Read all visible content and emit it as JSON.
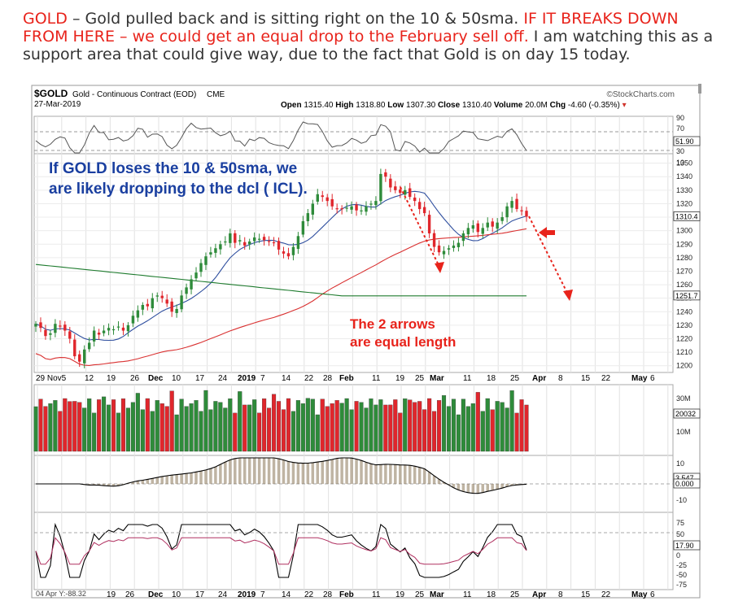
{
  "commentary": {
    "ticker": "GOLD",
    "sep": " – ",
    "part1": "Gold pulled back and is sitting right on the 10 & 50sma. ",
    "part2": "IF IT BREAKS DOWN FROM HERE –  we could get an equal drop to the February sell off.",
    "part3": "  I am watching this as a support area that could give way, due to the fact that Gold is on day 15 today."
  },
  "colors": {
    "up": "#2e8b3a",
    "down": "#e0262c",
    "ma_fast": "#2f4f9f",
    "ma_slow": "#d93030",
    "ma_long": "#1e7b2e",
    "annotation_blue": "#1a3fa0",
    "annotation_red": "#e8231b",
    "panel_bg": "#ffffff",
    "hist_fill": "#d9c4a6"
  },
  "header": {
    "symbol": "$GOLD",
    "name": "Gold - Continuous Contract (EOD)",
    "exchange": "CME",
    "brand": "©StockCharts.com",
    "date": "27-Mar-2019",
    "open_label": "Open",
    "open": "1315.40",
    "high_label": "High",
    "high": "1318.80",
    "low_label": "Low",
    "low": "1307.30",
    "close_label": "Close",
    "close": "1310.40",
    "volume_label": "Volume",
    "volume": "20.0M",
    "chg_label": "Chg",
    "chg": "-4.60 (-0.35%)",
    "chg_arrow": "▾"
  },
  "annotations": {
    "blue_line1": "If GOLD loses the 10 & 50sma, we",
    "blue_line2": "are likely dropping to the dcl ( ICL).",
    "red_line1": "The 2 arrows",
    "red_line2": "are equal length"
  },
  "top_labels": [
    "90",
    "70",
    "51.90",
    "30",
    "10"
  ],
  "bottom_left": "04 Apr Y:-88.32",
  "chart_data": {
    "type": "candlestick",
    "ylim": [
      1195,
      1357
    ],
    "yticks": [
      1200,
      1210,
      1220,
      1230,
      1240,
      1250,
      1260,
      1270,
      1280,
      1290,
      1300,
      1310,
      1320,
      1330,
      1340,
      1350
    ],
    "ma_long_label": "1251.7",
    "close_label": "1310.4",
    "x_labels_top": [
      "29 Nov5",
      "12",
      "19",
      "26",
      "Dec",
      "10",
      "17",
      "24",
      "2019",
      "7",
      "14",
      "22",
      "28",
      "Feb",
      "11",
      "19",
      "25",
      "Mar",
      "11",
      "18",
      "25",
      "Apr",
      "8",
      "15",
      "22",
      "May",
      "6"
    ],
    "x_labels_bottom": [
      "19",
      "26",
      "Dec",
      "10",
      "17",
      "24",
      "2019",
      "7",
      "14",
      "22",
      "28",
      "Feb",
      "11",
      "19",
      "25",
      "Mar",
      "11",
      "18",
      "25",
      "Apr",
      "8",
      "15",
      "22",
      "May",
      "6"
    ],
    "x_labels_bold": [
      "Dec",
      "2019",
      "Feb",
      "Mar",
      "Apr",
      "May"
    ],
    "closes": [
      1231,
      1228,
      1222,
      1224,
      1231,
      1229,
      1226,
      1220,
      1207,
      1203,
      1212,
      1217,
      1226,
      1223,
      1226,
      1228,
      1227,
      1229,
      1226,
      1230,
      1237,
      1241,
      1245,
      1244,
      1250,
      1252,
      1250,
      1246,
      1240,
      1242,
      1252,
      1258,
      1264,
      1269,
      1276,
      1281,
      1284,
      1287,
      1290,
      1292,
      1298,
      1291,
      1293,
      1289,
      1292,
      1295,
      1294,
      1293,
      1292,
      1291,
      1286,
      1283,
      1281,
      1288,
      1296,
      1307,
      1313,
      1320,
      1327,
      1325,
      1322,
      1318,
      1316,
      1316,
      1317,
      1318,
      1315,
      1315,
      1318,
      1320,
      1322,
      1342,
      1340,
      1332,
      1330,
      1328,
      1330,
      1325,
      1322,
      1316,
      1313,
      1298,
      1288,
      1284,
      1285,
      1287,
      1289,
      1291,
      1298,
      1302,
      1304,
      1299,
      1302,
      1306,
      1303,
      1306,
      1310,
      1318,
      1322,
      1316,
      1315,
      1310.4
    ],
    "ma_long_start": 1275,
    "ma_long_end": 1251.7,
    "osc_mid_label": "3.547",
    "osc_mid_label2": "0.000",
    "vol_labels": [
      "30M",
      "20032",
      "10M"
    ],
    "osc_labels": [
      "10",
      "-10"
    ],
    "bottom_osc_labels": [
      "75",
      "50",
      "17.90",
      "0",
      "-25",
      "-50",
      "-75"
    ]
  }
}
